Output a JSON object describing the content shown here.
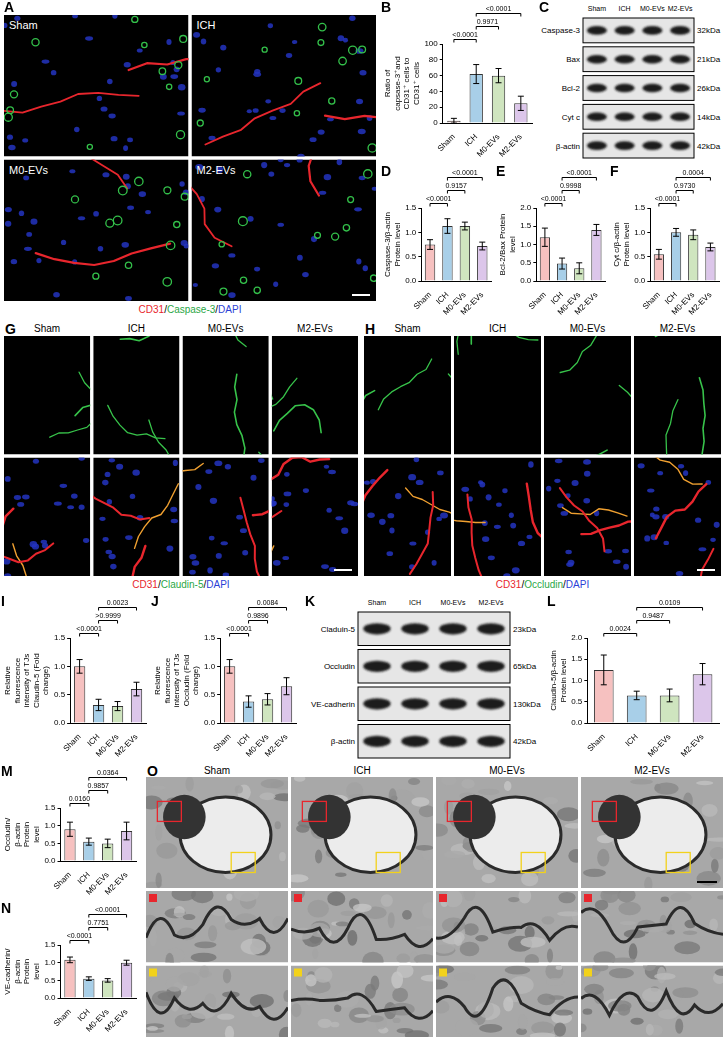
{
  "chart_data": [
    {
      "panel": "B",
      "type": "bar",
      "y_label": "Ratio of capsase-3⁺and CD31⁺ cells to CD31⁺ cells",
      "categories": [
        "Sham",
        "ICH",
        "M0-EVs",
        "M2-EVs"
      ],
      "values": [
        3,
        62,
        60,
        25
      ],
      "errors": [
        3,
        12,
        9,
        9
      ],
      "colors": [
        "#f6c1c0",
        "#a8cfe8",
        "#cfe5bf",
        "#dcc6ea"
      ],
      "ylim": [
        0,
        100
      ],
      "yticks": [
        0,
        20,
        40,
        60,
        80,
        100
      ],
      "grid": false,
      "comparisons": [
        {
          "groups": [
            0,
            1
          ],
          "label": "<0.0001"
        },
        {
          "groups": [
            1,
            2
          ],
          "label": "0.9971"
        },
        {
          "groups": [
            1,
            3
          ],
          "label": "<0.0001"
        }
      ]
    },
    {
      "panel": "D",
      "type": "bar",
      "y_label": "Caspase-3/β-actin Protein level",
      "categories": [
        "Sham",
        "ICH",
        "M0-EVs",
        "M2-EVs"
      ],
      "values": [
        0.75,
        1.13,
        1.13,
        0.72
      ],
      "errors": [
        0.1,
        0.15,
        0.08,
        0.08
      ],
      "colors": [
        "#f6c1c0",
        "#a8cfe8",
        "#cfe5bf",
        "#dcc6ea"
      ],
      "ylim": [
        0,
        1.5
      ],
      "yticks": [
        {
          "value": 0,
          "label": "0.0"
        },
        0.5,
        {
          "value": 1,
          "label": "1.0"
        },
        1.5
      ],
      "grid": false,
      "comparisons": [
        {
          "groups": [
            0,
            1
          ],
          "label": "<0.0001"
        },
        {
          "groups": [
            1,
            2
          ],
          "label": "0.9157"
        },
        {
          "groups": [
            1,
            3
          ],
          "label": "<0.0001"
        }
      ]
    },
    {
      "panel": "E",
      "type": "bar",
      "y_label": "Bcl-2/Bax Protein level",
      "categories": [
        "Sham",
        "ICH",
        "M0-EVs",
        "M2-EVs"
      ],
      "values": [
        1.2,
        0.48,
        0.35,
        1.4
      ],
      "errors": [
        0.25,
        0.15,
        0.15,
        0.15
      ],
      "colors": [
        "#f6c1c0",
        "#a8cfe8",
        "#cfe5bf",
        "#dcc6ea"
      ],
      "ylim": [
        0,
        2
      ],
      "yticks": [
        {
          "value": 0,
          "label": "0.0"
        },
        0.5,
        {
          "value": 1,
          "label": "1.0"
        },
        1.5,
        {
          "value": 2,
          "label": "2.0"
        }
      ],
      "grid": false,
      "comparisons": [
        {
          "groups": [
            0,
            1
          ],
          "label": "<0.0001"
        },
        {
          "groups": [
            1,
            2
          ],
          "label": "0.9998"
        },
        {
          "groups": [
            1,
            3
          ],
          "label": "<0.0001"
        }
      ]
    },
    {
      "panel": "F",
      "type": "bar",
      "y_label": "Cyt c/β-actin Protein level",
      "categories": [
        "Sham",
        "ICH",
        "M0-EVs",
        "M2-EVs"
      ],
      "values": [
        0.55,
        1.0,
        0.95,
        0.7
      ],
      "errors": [
        0.1,
        0.08,
        0.1,
        0.08
      ],
      "colors": [
        "#f6c1c0",
        "#a8cfe8",
        "#cfe5bf",
        "#dcc6ea"
      ],
      "ylim": [
        0,
        1.5
      ],
      "yticks": [
        {
          "value": 0,
          "label": "0.0"
        },
        0.5,
        {
          "value": 1,
          "label": "1.0"
        },
        1.5
      ],
      "grid": false,
      "comparisons": [
        {
          "groups": [
            0,
            1
          ],
          "label": "<0.0001"
        },
        {
          "groups": [
            1,
            2
          ],
          "label": "0.9730"
        },
        {
          "groups": [
            1,
            3
          ],
          "label": "0.0004"
        }
      ]
    },
    {
      "panel": "I",
      "type": "bar",
      "y_label": "Relative fluorescence intensity of TJs Claudin-5 (Fold change)",
      "categories": [
        "Sham",
        "ICH",
        "M0-EVs",
        "M2-EVs"
      ],
      "values": [
        1.0,
        0.32,
        0.3,
        0.6
      ],
      "errors": [
        0.12,
        0.1,
        0.08,
        0.12
      ],
      "colors": [
        "#f6c1c0",
        "#a8cfe8",
        "#cfe5bf",
        "#dcc6ea"
      ],
      "ylim": [
        0,
        1.5
      ],
      "yticks": [
        {
          "value": 0,
          "label": "0.0"
        },
        0.5,
        {
          "value": 1,
          "label": "1.0"
        },
        1.5
      ],
      "grid": false,
      "comparisons": [
        {
          "groups": [
            0,
            1
          ],
          "label": "<0.0001"
        },
        {
          "groups": [
            1,
            2
          ],
          "label": ">0.9999"
        },
        {
          "groups": [
            1,
            3
          ],
          "label": "0.0023"
        }
      ]
    },
    {
      "panel": "J",
      "type": "bar",
      "y_label": "Relative fluorescence intensity of TJs Occludin (Fold change)",
      "categories": [
        "Sham",
        "ICH",
        "M0-EVs",
        "M2-EVs"
      ],
      "values": [
        1.0,
        0.38,
        0.42,
        0.65
      ],
      "errors": [
        0.12,
        0.1,
        0.1,
        0.15
      ],
      "colors": [
        "#f6c1c0",
        "#a8cfe8",
        "#cfe5bf",
        "#dcc6ea"
      ],
      "ylim": [
        0,
        1.5
      ],
      "yticks": [
        {
          "value": 0,
          "label": "0.0"
        },
        0.5,
        {
          "value": 1,
          "label": "1.0"
        },
        1.5
      ],
      "grid": false,
      "comparisons": [
        {
          "groups": [
            0,
            1
          ],
          "label": "<0.0001"
        },
        {
          "groups": [
            1,
            2
          ],
          "label": "0.9896"
        },
        {
          "groups": [
            1,
            3
          ],
          "label": "0.0084"
        }
      ]
    },
    {
      "panel": "L",
      "type": "bar",
      "y_label": "Claudin-5/β-actin Protein level",
      "categories": [
        "Sham",
        "ICH",
        "M0-EVs",
        "M2-EVs"
      ],
      "values": [
        1.25,
        0.65,
        0.65,
        1.15
      ],
      "errors": [
        0.35,
        0.1,
        0.15,
        0.25
      ],
      "colors": [
        "#f6c1c0",
        "#a8cfe8",
        "#cfe5bf",
        "#dcc6ea"
      ],
      "ylim": [
        0,
        2
      ],
      "yticks": [
        {
          "value": 0,
          "label": "0.0"
        },
        0.5,
        {
          "value": 1,
          "label": "1.0"
        },
        1.5,
        {
          "value": 2,
          "label": "2.0"
        }
      ],
      "grid": false,
      "comparisons": [
        {
          "groups": [
            0,
            1
          ],
          "label": "0.0024"
        },
        {
          "groups": [
            1,
            2
          ],
          "label": "0.9487"
        },
        {
          "groups": [
            1,
            3
          ],
          "label": "0.0109"
        }
      ]
    },
    {
      "panel": "M",
      "type": "bar",
      "y_label": "Occludin/β-actin Protein level",
      "categories": [
        "Sham",
        "ICH",
        "M0-EVs",
        "M2-EVs"
      ],
      "values": [
        0.9,
        0.55,
        0.5,
        0.85
      ],
      "errors": [
        0.2,
        0.1,
        0.12,
        0.25
      ],
      "colors": [
        "#f6c1c0",
        "#a8cfe8",
        "#cfe5bf",
        "#dcc6ea"
      ],
      "ylim": [
        0,
        1.5
      ],
      "yticks": [
        {
          "value": 0,
          "label": "0.0"
        },
        0.5,
        {
          "value": 1,
          "label": "1.0"
        },
        1.5
      ],
      "grid": false,
      "comparisons": [
        {
          "groups": [
            0,
            1
          ],
          "label": "0.0160"
        },
        {
          "groups": [
            1,
            2
          ],
          "label": "0.9857"
        },
        {
          "groups": [
            1,
            3
          ],
          "label": "0.0364"
        }
      ]
    },
    {
      "panel": "N",
      "type": "bar",
      "y_label": "VE-cadherin/β-actin Protein level",
      "categories": [
        "Sham",
        "ICH",
        "M0-EVs",
        "M2-EVs"
      ],
      "values": [
        1.08,
        0.55,
        0.5,
        1.0
      ],
      "errors": [
        0.08,
        0.05,
        0.05,
        0.07
      ],
      "colors": [
        "#f6c1c0",
        "#a8cfe8",
        "#cfe5bf",
        "#dcc6ea"
      ],
      "ylim": [
        0,
        1.5
      ],
      "yticks": [
        {
          "value": 0,
          "label": "0.0"
        },
        0.5,
        {
          "value": 1,
          "label": "1.0"
        },
        1.5
      ],
      "grid": false,
      "comparisons": [
        {
          "groups": [
            0,
            1
          ],
          "label": "<0.0001"
        },
        {
          "groups": [
            1,
            2
          ],
          "label": "0.7751"
        },
        {
          "groups": [
            1,
            3
          ],
          "label": "<0.0001"
        }
      ]
    }
  ],
  "blots": [
    {
      "panel": "C",
      "lanes": [
        "Sham",
        "ICH",
        "M0-EVs",
        "M2-EVs"
      ],
      "rows": [
        {
          "name": "Caspase-3",
          "size": "32kDa"
        },
        {
          "name": "Bax",
          "size": "21kDa"
        },
        {
          "name": "Bcl-2",
          "size": "26kDa"
        },
        {
          "name": "Cyt c",
          "size": "14kDa"
        },
        {
          "name": "β-actin",
          "size": "42kDa"
        }
      ]
    },
    {
      "panel": "K",
      "lanes": [
        "Sham",
        "ICH",
        "M0-EVs",
        "M2-EVs"
      ],
      "rows": [
        {
          "name": "Claduin-5",
          "size": "23kDa"
        },
        {
          "name": "Occludin",
          "size": "65kDa"
        },
        {
          "name": "VE-cadherin",
          "size": "130kDa"
        },
        {
          "name": "β-actin",
          "size": "42kDa"
        }
      ]
    }
  ],
  "micrographs": [
    {
      "panel": "A",
      "titles": [
        "Sham",
        "ICH",
        "M0-EVs",
        "M2-EVs"
      ],
      "stain": [
        {
          "text": "CD31",
          "color": "#e8262d"
        },
        {
          "text": "Caspase-3",
          "color": "#2aa745"
        },
        {
          "text": "DAPI",
          "color": "#2b3fd6"
        }
      ],
      "separator": "/"
    },
    {
      "panel": "G",
      "titles": [
        "Sham",
        "ICH",
        "M0-EVs",
        "M2-EVs"
      ],
      "stain": [
        {
          "text": "CD31",
          "color": "#e8262d"
        },
        {
          "text": "Claudin-5",
          "color": "#2aa745"
        },
        {
          "text": "DAPI",
          "color": "#2b3fd6"
        }
      ],
      "separator": "/"
    },
    {
      "panel": "H",
      "titles": [
        "Sham",
        "ICH",
        "M0-EVs",
        "M2-EVs"
      ],
      "stain": [
        {
          "text": "CD31",
          "color": "#e8262d"
        },
        {
          "text": "Occludin",
          "color": "#2aa745"
        },
        {
          "text": "DAPI",
          "color": "#2b3fd6"
        }
      ],
      "separator": "/"
    }
  ],
  "electron_micrographs": {
    "panel": "O",
    "titles": [
      "Sham",
      "ICH",
      "M0-EVs",
      "M2-EVs"
    ]
  }
}
